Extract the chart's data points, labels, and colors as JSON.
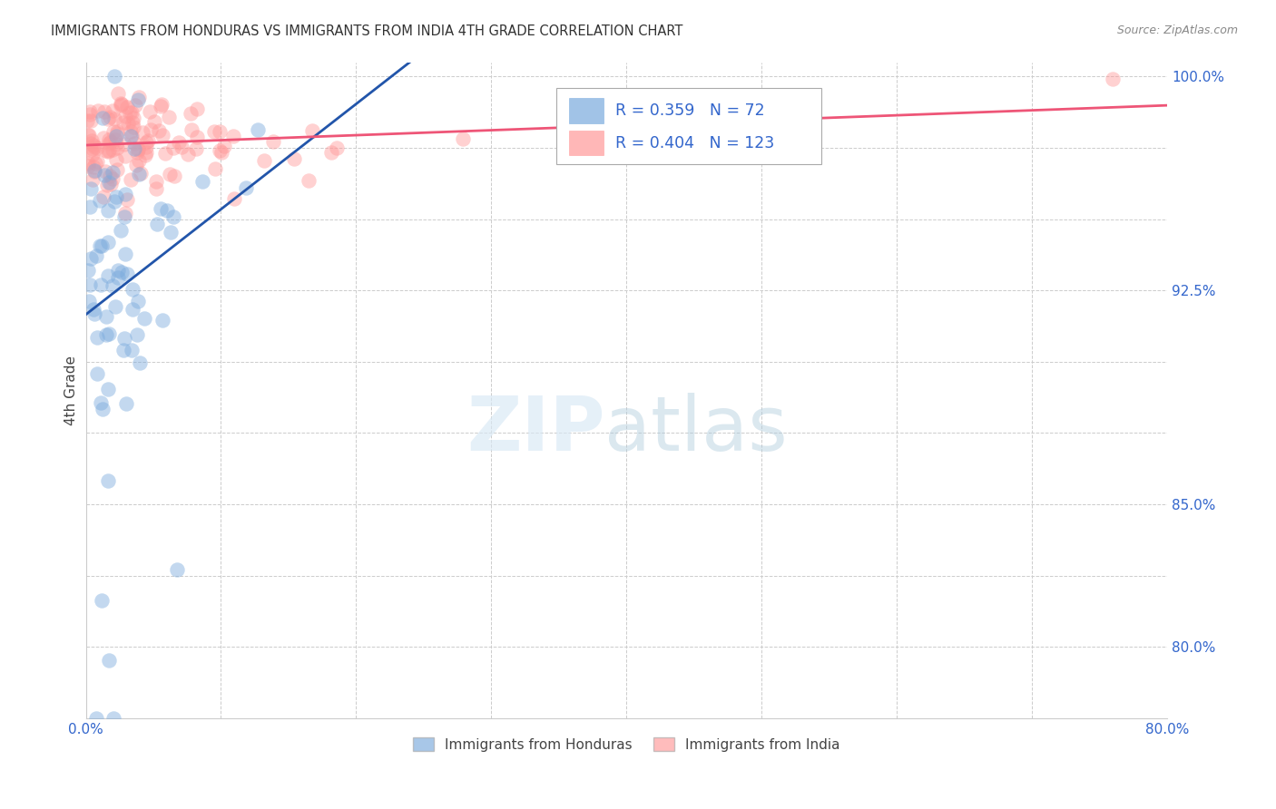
{
  "title": "IMMIGRANTS FROM HONDURAS VS IMMIGRANTS FROM INDIA 4TH GRADE CORRELATION CHART",
  "source": "Source: ZipAtlas.com",
  "ylabel": "4th Grade",
  "xlim": [
    0.0,
    0.8
  ],
  "ylim": [
    0.775,
    1.005
  ],
  "ytick_positions": [
    0.775,
    0.8,
    0.825,
    0.85,
    0.875,
    0.9,
    0.925,
    0.95,
    0.975,
    1.0
  ],
  "ytick_labels": [
    "",
    "80.0%",
    "",
    "85.0%",
    "",
    "",
    "92.5%",
    "",
    "",
    "100.0%"
  ],
  "xtick_positions": [
    0.0,
    0.1,
    0.2,
    0.3,
    0.4,
    0.5,
    0.6,
    0.7,
    0.8
  ],
  "xtick_labels": [
    "0.0%",
    "",
    "",
    "",
    "",
    "",
    "",
    "",
    "80.0%"
  ],
  "honduras_color": "#7AAADD",
  "india_color": "#FF9999",
  "honduras_R": 0.359,
  "honduras_N": 72,
  "india_R": 0.404,
  "india_N": 123,
  "trend_honduras_color": "#2255AA",
  "trend_india_color": "#EE5577",
  "background_color": "#FFFFFF",
  "grid_color": "#CCCCCC",
  "seed": 123
}
